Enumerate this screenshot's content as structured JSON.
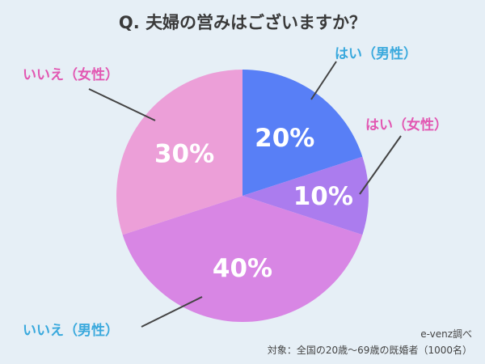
{
  "title": "Q. 夫婦の営みはございますか？",
  "chart_data": {
    "type": "pie",
    "start_angle_deg": 0,
    "direction": "clockwise",
    "slices": [
      {
        "label": "はい（男性）",
        "value": 20,
        "display": "20%",
        "color": "#587ff6",
        "label_color": "#3aa9dd"
      },
      {
        "label": "はい（女性）",
        "value": 10,
        "display": "10%",
        "color": "#ab7cee",
        "label_color": "#e257b2"
      },
      {
        "label": "いいえ（男性）",
        "value": 40,
        "display": "40%",
        "color": "#d886e4",
        "label_color": "#3aa9dd"
      },
      {
        "label": "いいえ（女性）",
        "value": 30,
        "display": "30%",
        "color": "#ec9fd8",
        "label_color": "#e257b2"
      }
    ]
  },
  "credit": {
    "source": "e-venz調べ",
    "target": "対象：全国の20歳〜69歳の既婚者（1000名）"
  }
}
